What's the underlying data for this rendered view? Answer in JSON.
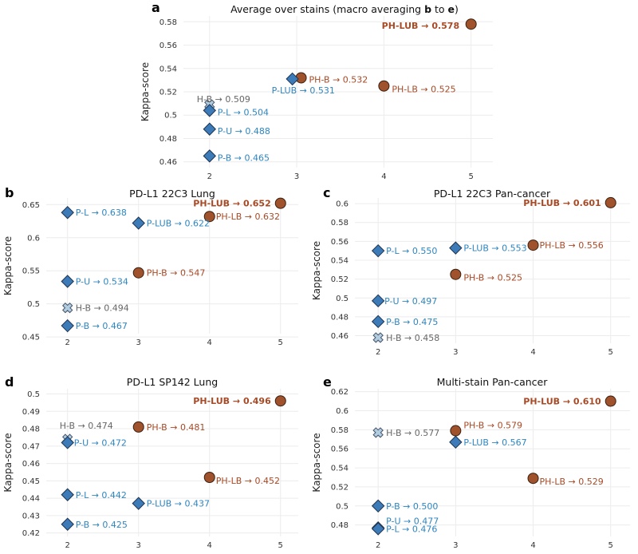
{
  "colors": {
    "ph_marker": "#a0522d",
    "ph_text": "#a84a26",
    "p_marker": "#3d7ab8",
    "p_text": "#2e86c1",
    "hb_marker": "#b3cde0",
    "hb_text": "#666666"
  },
  "chart_data": [
    {
      "id": "a",
      "type": "scatter",
      "letter": "a",
      "title_parts": [
        {
          "text": "Average over stains (macro averaging ",
          "bold": false
        },
        {
          "text": "b",
          "bold": true
        },
        {
          "text": " to ",
          "bold": false
        },
        {
          "text": "e",
          "bold": true
        },
        {
          "text": ")",
          "bold": false
        }
      ],
      "xlabel": "",
      "ylabel": "Kappa-score",
      "xlim": [
        1.7,
        5.25
      ],
      "ylim": [
        0.455,
        0.585
      ],
      "xticks": [
        2,
        3,
        4,
        5
      ],
      "yticks": [
        0.46,
        0.48,
        0.5,
        0.52,
        0.54,
        0.56,
        0.58
      ],
      "ytick_labels": [
        "0.46",
        "0.48",
        "0.5",
        "0.52",
        "0.54",
        "0.56",
        "0.58"
      ],
      "points": [
        {
          "x": 5,
          "y": 0.578,
          "group": "ph",
          "label": "PH-LUB → 0.578",
          "bold": true
        },
        {
          "x": 3.05,
          "y": 0.532,
          "group": "ph",
          "label": "PH-B → 0.532",
          "bold": false
        },
        {
          "x": 4,
          "y": 0.525,
          "group": "ph",
          "label": "PH-LB → 0.525",
          "bold": false
        },
        {
          "x": 2.95,
          "y": 0.531,
          "group": "p",
          "label": "P-LUB → 0.531",
          "bold": false
        },
        {
          "x": 2,
          "y": 0.509,
          "group": "hb",
          "label": "H-B → 0.509",
          "bold": false
        },
        {
          "x": 2,
          "y": 0.504,
          "group": "p",
          "label": "P-L → 0.504",
          "bold": false
        },
        {
          "x": 2,
          "y": 0.488,
          "group": "p",
          "label": "P-U → 0.488",
          "bold": false
        },
        {
          "x": 2,
          "y": 0.465,
          "group": "p",
          "label": "P-B → 0.465",
          "bold": false
        }
      ]
    },
    {
      "id": "b",
      "type": "scatter",
      "letter": "b",
      "title_parts": [
        {
          "text": "PD-L1 22C3 Lung",
          "bold": false
        }
      ],
      "xlabel": "",
      "ylabel": "Kappa-score",
      "xlim": [
        1.7,
        5.25
      ],
      "ylim": [
        0.455,
        0.66
      ],
      "xticks": [
        2,
        3,
        4,
        5
      ],
      "yticks": [
        0.45,
        0.5,
        0.55,
        0.6,
        0.65
      ],
      "ytick_labels": [
        "0.45",
        "0.5",
        "0.55",
        "0.6",
        "0.65"
      ],
      "points": [
        {
          "x": 5,
          "y": 0.652,
          "group": "ph",
          "label": "PH-LUB → 0.652",
          "bold": true
        },
        {
          "x": 4,
          "y": 0.632,
          "group": "ph",
          "label": "PH-LB → 0.632",
          "bold": false
        },
        {
          "x": 3,
          "y": 0.622,
          "group": "p",
          "label": "P-LUB → 0.622",
          "bold": false
        },
        {
          "x": 2,
          "y": 0.638,
          "group": "p",
          "label": "P-L → 0.638",
          "bold": false
        },
        {
          "x": 3,
          "y": 0.547,
          "group": "ph",
          "label": "PH-B → 0.547",
          "bold": false
        },
        {
          "x": 2,
          "y": 0.534,
          "group": "p",
          "label": "P-U → 0.534",
          "bold": false
        },
        {
          "x": 2,
          "y": 0.494,
          "group": "hb",
          "label": "H-B → 0.494",
          "bold": false
        },
        {
          "x": 2,
          "y": 0.467,
          "group": "p",
          "label": "P-B → 0.467",
          "bold": false
        }
      ]
    },
    {
      "id": "c",
      "type": "scatter",
      "letter": "c",
      "title_parts": [
        {
          "text": "PD-L1 22C3 Pan-cancer",
          "bold": false
        }
      ],
      "xlabel": "",
      "ylabel": "Kappa-score",
      "xlim": [
        1.7,
        5.25
      ],
      "ylim": [
        0.452,
        0.606
      ],
      "xticks": [
        2,
        3,
        4,
        5
      ],
      "yticks": [
        0.46,
        0.48,
        0.5,
        0.52,
        0.54,
        0.56,
        0.58,
        0.6
      ],
      "ytick_labels": [
        "0.46",
        "0.48",
        "0.5",
        "0.52",
        "0.54",
        "0.56",
        "0.58",
        "0.6"
      ],
      "points": [
        {
          "x": 5,
          "y": 0.601,
          "group": "ph",
          "label": "PH-LUB → 0.601",
          "bold": true
        },
        {
          "x": 4,
          "y": 0.556,
          "group": "ph",
          "label": "PH-LB → 0.556",
          "bold": false
        },
        {
          "x": 3,
          "y": 0.553,
          "group": "p",
          "label": "P-LUB → 0.553",
          "bold": false
        },
        {
          "x": 2,
          "y": 0.55,
          "group": "p",
          "label": "P-L → 0.550",
          "bold": false
        },
        {
          "x": 3,
          "y": 0.525,
          "group": "ph",
          "label": "PH-B → 0.525",
          "bold": false
        },
        {
          "x": 2,
          "y": 0.497,
          "group": "p",
          "label": "P-U → 0.497",
          "bold": false
        },
        {
          "x": 2,
          "y": 0.475,
          "group": "p",
          "label": "P-B → 0.475",
          "bold": false
        },
        {
          "x": 2,
          "y": 0.458,
          "group": "hb",
          "label": "H-B → 0.458",
          "bold": false
        }
      ]
    },
    {
      "id": "d",
      "type": "scatter",
      "letter": "d",
      "title_parts": [
        {
          "text": "PD-L1 SP142 Lung",
          "bold": false
        }
      ],
      "xlabel": "",
      "ylabel": "Kappa-score",
      "xlim": [
        1.7,
        5.25
      ],
      "ylim": [
        0.418,
        0.503
      ],
      "xticks": [
        2,
        3,
        4,
        5
      ],
      "yticks": [
        0.42,
        0.43,
        0.44,
        0.45,
        0.46,
        0.47,
        0.48,
        0.49,
        0.5
      ],
      "ytick_labels": [
        "0.42",
        "0.43",
        "0.44",
        "0.45",
        "0.46",
        "0.47",
        "0.48",
        "0.49",
        "0.5"
      ],
      "points": [
        {
          "x": 5,
          "y": 0.496,
          "group": "ph",
          "label": "PH-LUB → 0.496",
          "bold": true
        },
        {
          "x": 3,
          "y": 0.481,
          "group": "ph",
          "label": "PH-B → 0.481",
          "bold": false
        },
        {
          "x": 2,
          "y": 0.474,
          "group": "hb",
          "label": "H-B → 0.474",
          "bold": false
        },
        {
          "x": 2,
          "y": 0.472,
          "group": "p",
          "label": "P-U → 0.472",
          "bold": false
        },
        {
          "x": 4,
          "y": 0.452,
          "group": "ph",
          "label": "PH-LB → 0.452",
          "bold": false
        },
        {
          "x": 2,
          "y": 0.442,
          "group": "p",
          "label": "P-L → 0.442",
          "bold": false
        },
        {
          "x": 3,
          "y": 0.437,
          "group": "p",
          "label": "P-LUB → 0.437",
          "bold": false
        },
        {
          "x": 2,
          "y": 0.425,
          "group": "p",
          "label": "P-B → 0.425",
          "bold": false
        }
      ]
    },
    {
      "id": "e",
      "type": "scatter",
      "letter": "e",
      "title_parts": [
        {
          "text": "Multi-stain Pan-cancer",
          "bold": false
        }
      ],
      "xlabel": "",
      "ylabel": "Kappa-score",
      "xlim": [
        1.7,
        5.25
      ],
      "ylim": [
        0.468,
        0.623
      ],
      "xticks": [
        2,
        3,
        4,
        5
      ],
      "yticks": [
        0.48,
        0.5,
        0.52,
        0.54,
        0.56,
        0.58,
        0.6,
        0.62
      ],
      "ytick_labels": [
        "0.48",
        "0.5",
        "0.52",
        "0.54",
        "0.56",
        "0.58",
        "0.6",
        "0.62"
      ],
      "points": [
        {
          "x": 5,
          "y": 0.61,
          "group": "ph",
          "label": "PH-LUB → 0.610",
          "bold": true
        },
        {
          "x": 3,
          "y": 0.579,
          "group": "ph",
          "label": "PH-B → 0.579",
          "bold": false
        },
        {
          "x": 2,
          "y": 0.577,
          "group": "hb",
          "label": "H-B → 0.577",
          "bold": false
        },
        {
          "x": 3,
          "y": 0.567,
          "group": "p",
          "label": "P-LUB → 0.567",
          "bold": false
        },
        {
          "x": 4,
          "y": 0.529,
          "group": "ph",
          "label": "PH-LB → 0.529",
          "bold": false
        },
        {
          "x": 2,
          "y": 0.5,
          "group": "p",
          "label": "P-B → 0.500",
          "bold": false
        },
        {
          "x": 2,
          "y": 0.477,
          "group": "p",
          "label": "P-U → 0.477",
          "bold": false
        },
        {
          "x": 2,
          "y": 0.476,
          "group": "p",
          "label": "P-L → 0.476",
          "bold": false
        }
      ]
    }
  ]
}
